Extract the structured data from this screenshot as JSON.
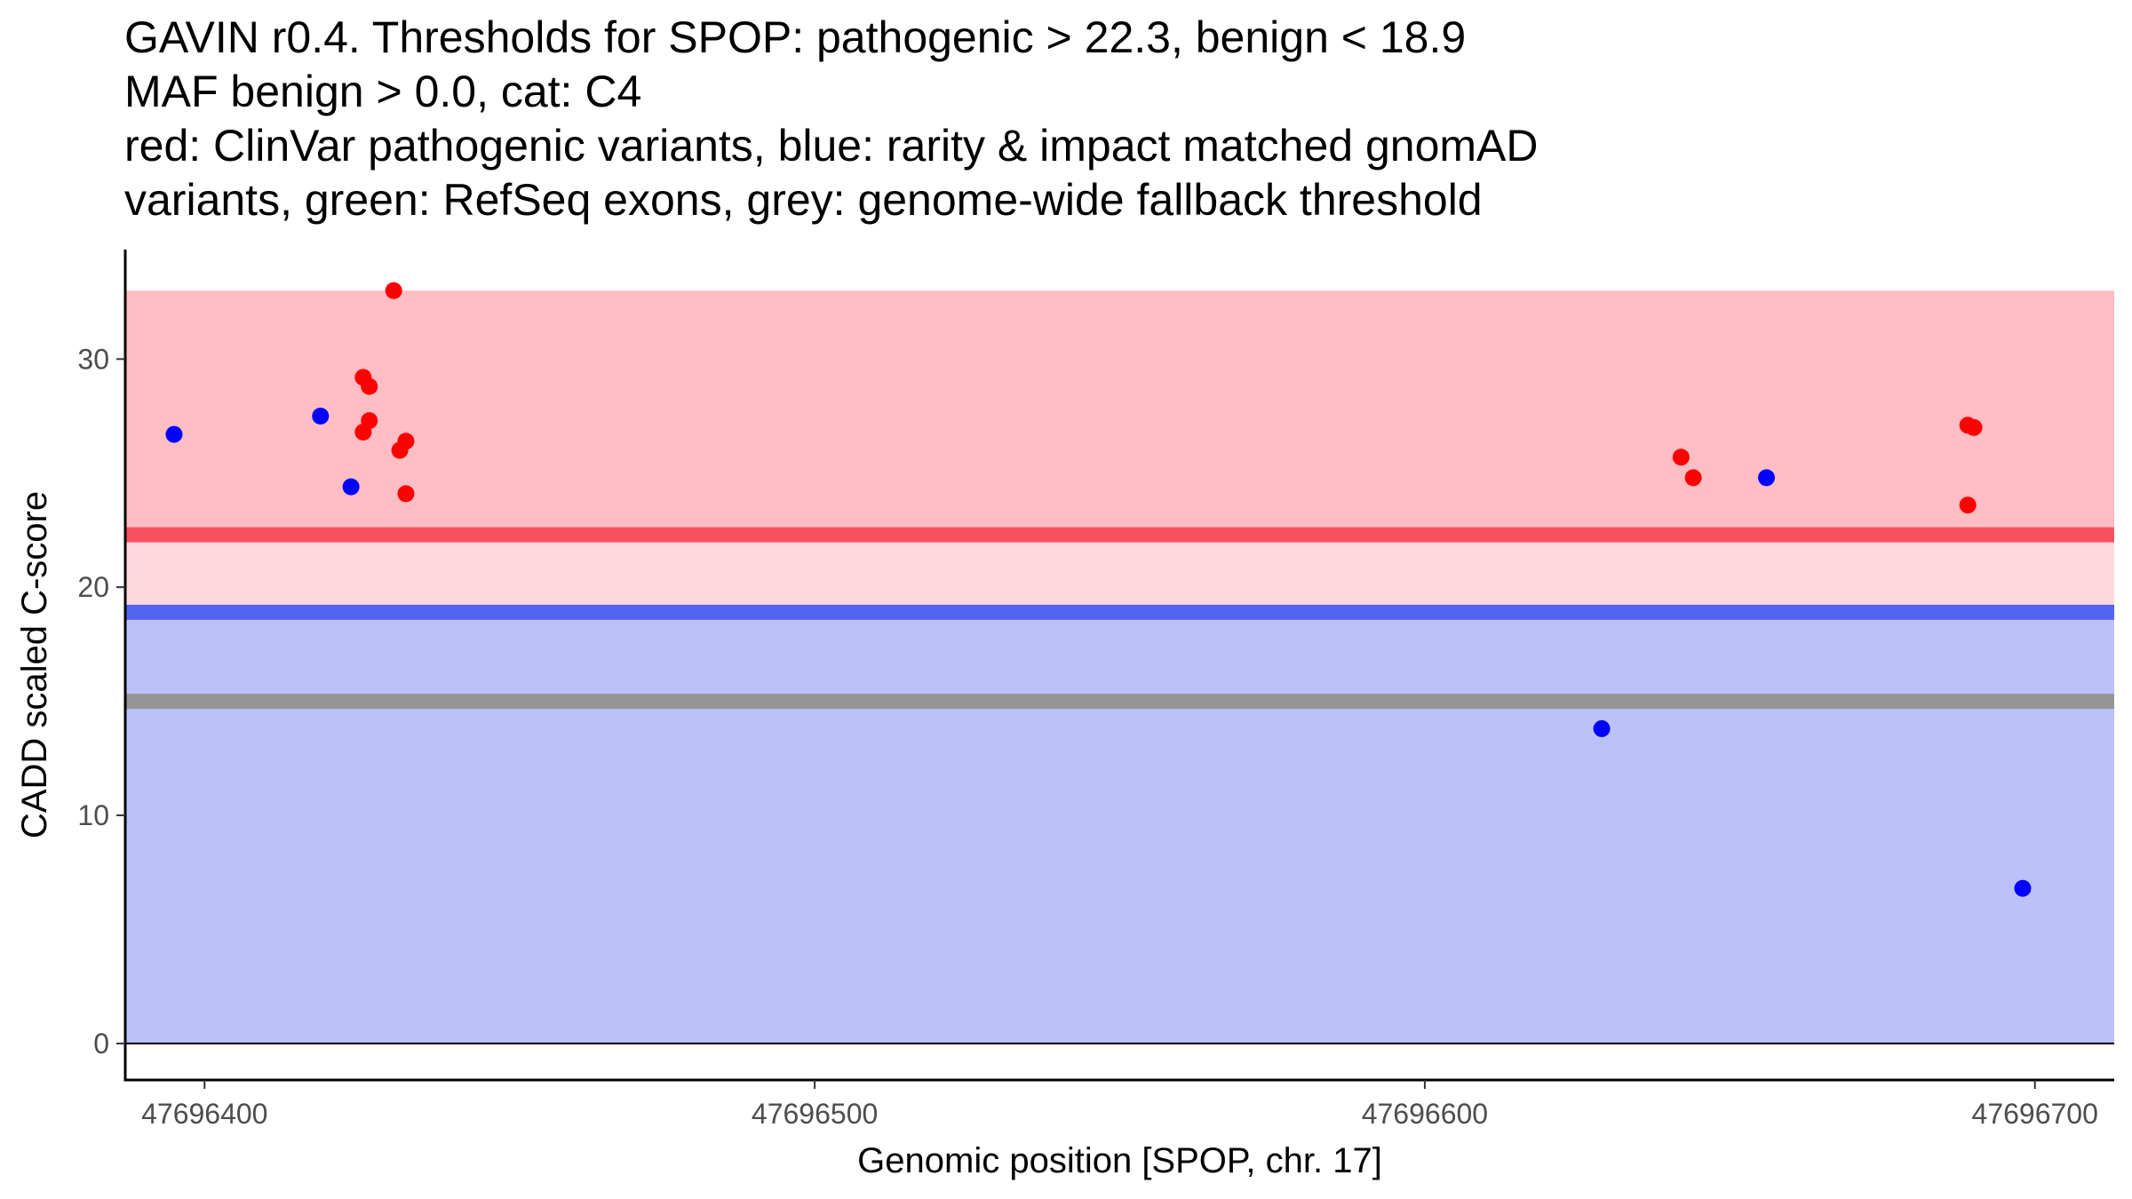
{
  "title_lines": [
    "GAVIN r0.4. Thresholds for SPOP: pathogenic > 22.3, benign < 18.9",
    "MAF benign > 0.0, cat: C4",
    "red: ClinVar pathogenic variants, blue: rarity & impact matched gnomAD",
    "variants, green: RefSeq exons, grey: genome-wide fallback threshold"
  ],
  "chart_data": {
    "type": "scatter",
    "xlabel": "Genomic position [SPOP, chr. 17]",
    "ylabel": "CADD scaled C-score",
    "xlim": [
      47696387,
      47696713
    ],
    "ylim": [
      -1.6,
      34.8
    ],
    "x_ticks": [
      47696400,
      47696500,
      47696600,
      47696700
    ],
    "x_tick_labels": [
      "47696400",
      "47696500",
      "47696600",
      "47696700"
    ],
    "y_ticks": [
      0,
      10,
      20,
      30
    ],
    "y_tick_labels": [
      "0",
      "10",
      "20",
      "30"
    ],
    "bands": [
      {
        "name": "pathogenic-region",
        "from": 22.3,
        "to": 33.0,
        "color": "#ffbdc4"
      },
      {
        "name": "grey-zone",
        "from": 18.9,
        "to": 22.3,
        "color": "#ffd8de"
      },
      {
        "name": "benign-region",
        "from": 0,
        "to": 18.9,
        "color": "#bbc2fa"
      }
    ],
    "threshold_lines": [
      {
        "name": "pathogenic-threshold",
        "y": 22.3,
        "color": "#f7505f"
      },
      {
        "name": "benign-threshold",
        "y": 18.9,
        "color": "#5364f2"
      },
      {
        "name": "fallback-threshold",
        "y": 15.0,
        "color": "#959595"
      }
    ],
    "series": [
      {
        "name": "ClinVar pathogenic variants",
        "color": "#ff0000",
        "points": [
          {
            "x": 47696431,
            "y": 33.0
          },
          {
            "x": 47696426,
            "y": 29.2
          },
          {
            "x": 47696427,
            "y": 28.8
          },
          {
            "x": 47696427,
            "y": 27.3
          },
          {
            "x": 47696426,
            "y": 26.8
          },
          {
            "x": 47696433,
            "y": 26.4
          },
          {
            "x": 47696432,
            "y": 26.0
          },
          {
            "x": 47696433,
            "y": 24.1
          },
          {
            "x": 47696642,
            "y": 25.7
          },
          {
            "x": 47696644,
            "y": 24.8
          },
          {
            "x": 47696689,
            "y": 27.1
          },
          {
            "x": 47696690,
            "y": 27.0
          },
          {
            "x": 47696689,
            "y": 23.6
          }
        ]
      },
      {
        "name": "rarity & impact matched gnomAD variants",
        "color": "#0000ff",
        "points": [
          {
            "x": 47696395,
            "y": 26.7
          },
          {
            "x": 47696419,
            "y": 27.5
          },
          {
            "x": 47696424,
            "y": 24.4
          },
          {
            "x": 47696656,
            "y": 24.8
          },
          {
            "x": 47696629,
            "y": 13.8
          },
          {
            "x": 47696698,
            "y": 6.8
          }
        ]
      }
    ]
  }
}
